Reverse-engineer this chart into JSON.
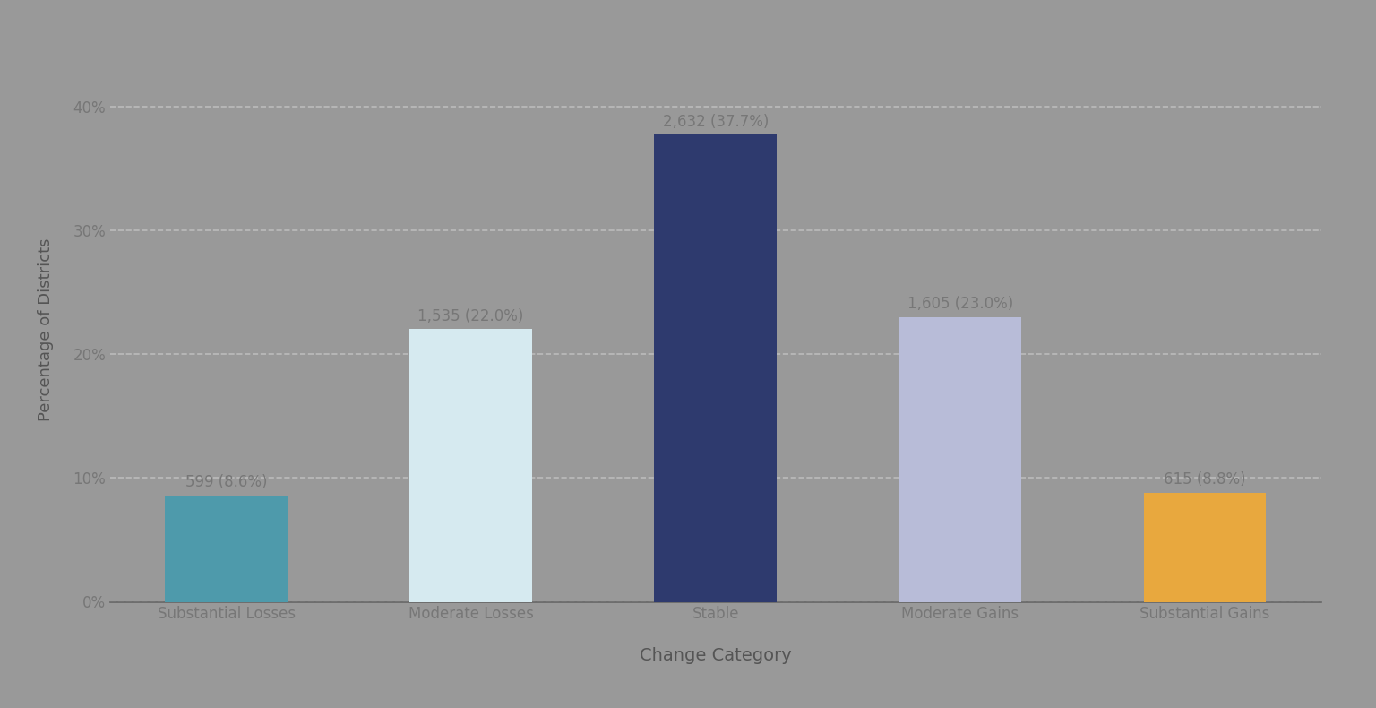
{
  "categories": [
    "Substantial Losses",
    "Moderate Losses",
    "Stable",
    "Moderate Gains",
    "Substantial Gains"
  ],
  "values": [
    8.6,
    22.0,
    37.7,
    23.0,
    8.8
  ],
  "counts": [
    599,
    1535,
    2632,
    1605,
    615
  ],
  "bar_colors": [
    "#4e9aab",
    "#d6eaf0",
    "#2e3a6e",
    "#b8bcd8",
    "#e8a83e"
  ],
  "background_color": "#999999",
  "xlabel": "Change Category",
  "ylabel": "Percentage of Districts",
  "xlabel_fontsize": 14,
  "ylabel_fontsize": 13,
  "tick_label_fontsize": 12,
  "annotation_fontsize": 12,
  "annotation_color": "#777777",
  "axis_label_color": "#555555",
  "tick_color": "#777777",
  "grid_color": "#bbbbbb",
  "ylim": [
    0,
    44
  ],
  "yticks": [
    0,
    10,
    20,
    30,
    40
  ],
  "ytick_labels": [
    "0%",
    "10%",
    "20%",
    "30%",
    "40%"
  ]
}
